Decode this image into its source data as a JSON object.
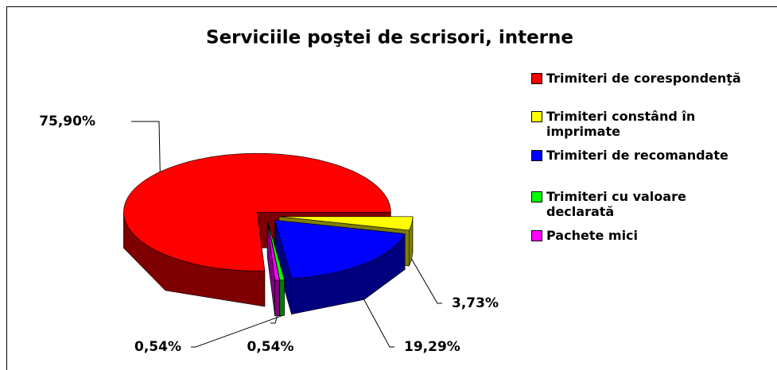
{
  "chart_data": {
    "type": "pie3d",
    "title": "Serviciile poştei de scrisori, interne",
    "categories": [
      "Trimiteri de corespondenţă",
      "Trimiteri constând în imprimate",
      "Trimiteri de recomandate",
      "Trimiteri cu valoare declarată",
      "Pachete mici"
    ],
    "values": [
      75.9,
      3.73,
      19.29,
      0.54,
      0.54
    ],
    "value_labels": [
      "75,90%",
      "3,73%",
      "19,29%",
      "0,54%",
      "0,54%"
    ],
    "colors": [
      "#ff0000",
      "#ffff00",
      "#0000ff",
      "#00ff00",
      "#ff00ff"
    ],
    "legend": "right"
  }
}
